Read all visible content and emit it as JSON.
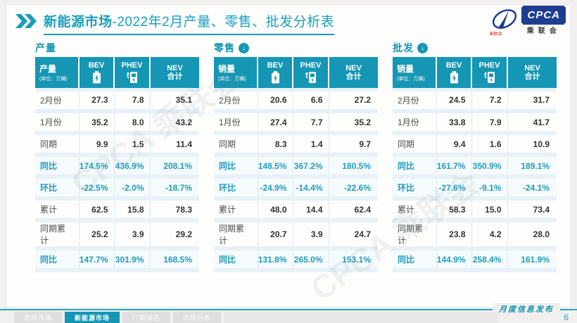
{
  "header": {
    "title_bold": "新能源市场",
    "title_rest": "-2022年2月产量、零售、批发分析表",
    "logo": {
      "name": "CPCA",
      "cn": "乘联会",
      "sub": "乘联会"
    }
  },
  "columns": {
    "bev": "BEV",
    "phev": "PHEV",
    "nev_line1": "NEV",
    "nev_line2": "合计"
  },
  "tables": [
    {
      "section_title": "产量",
      "header_label": "产量",
      "header_unit": "(单位：万辆)",
      "rows": [
        {
          "label": "2月份",
          "bev": "27.3",
          "phev": "7.8",
          "nev": "35.1",
          "highlight": false
        },
        {
          "label": "1月份",
          "bev": "35.2",
          "phev": "8.0",
          "nev": "43.2",
          "highlight": false
        },
        {
          "label": "同期",
          "bev": "9.9",
          "phev": "1.5",
          "nev": "11.4",
          "highlight": false
        },
        {
          "label": "同比",
          "bev": "174.5%",
          "phev": "436.9%",
          "nev": "208.1%",
          "highlight": true
        },
        {
          "label": "环比",
          "bev": "-22.5%",
          "phev": "-2.0%",
          "nev": "-18.7%",
          "highlight": true
        },
        {
          "label": "累计",
          "bev": "62.5",
          "phev": "15.8",
          "nev": "78.3",
          "highlight": false
        },
        {
          "label": "同期累计",
          "bev": "25.2",
          "phev": "3.9",
          "nev": "29.2",
          "highlight": false
        },
        {
          "label": "同比",
          "bev": "147.7%",
          "phev": "301.9%",
          "nev": "168.5%",
          "highlight": true
        }
      ]
    },
    {
      "section_title": "零售",
      "header_label": "销量",
      "header_unit": "(单位：万辆)",
      "rows": [
        {
          "label": "2月份",
          "bev": "20.6",
          "phev": "6.6",
          "nev": "27.2",
          "highlight": false
        },
        {
          "label": "1月份",
          "bev": "27.4",
          "phev": "7.7",
          "nev": "35.2",
          "highlight": false
        },
        {
          "label": "同期",
          "bev": "8.3",
          "phev": "1.4",
          "nev": "9.7",
          "highlight": false
        },
        {
          "label": "同比",
          "bev": "148.5%",
          "phev": "367.2%",
          "nev": "180.5%",
          "highlight": true
        },
        {
          "label": "环比",
          "bev": "-24.9%",
          "phev": "-14.4%",
          "nev": "-22.6%",
          "highlight": true
        },
        {
          "label": "累计",
          "bev": "48.0",
          "phev": "14.4",
          "nev": "62.4",
          "highlight": false
        },
        {
          "label": "同期累计",
          "bev": "20.7",
          "phev": "3.9",
          "nev": "24.7",
          "highlight": false
        },
        {
          "label": "同比",
          "bev": "131.8%",
          "phev": "265.0%",
          "nev": "153.1%",
          "highlight": true
        }
      ]
    },
    {
      "section_title": "批发",
      "header_label": "销量",
      "header_unit": "(单位：万辆)",
      "rows": [
        {
          "label": "2月份",
          "bev": "24.5",
          "phev": "7.2",
          "nev": "31.7",
          "highlight": false
        },
        {
          "label": "1月份",
          "bev": "33.8",
          "phev": "7.9",
          "nev": "41.7",
          "highlight": false
        },
        {
          "label": "同期",
          "bev": "9.4",
          "phev": "1.6",
          "nev": "10.9",
          "highlight": false
        },
        {
          "label": "同比",
          "bev": "161.7%",
          "phev": "350.9%",
          "nev": "189.1%",
          "highlight": true
        },
        {
          "label": "环比",
          "bev": "-27.6%",
          "phev": "-9.1%",
          "nev": "-24.1%",
          "highlight": true
        },
        {
          "label": "累计",
          "bev": "58.3",
          "phev": "15.0",
          "nev": "73.4",
          "highlight": false
        },
        {
          "label": "同期累计",
          "bev": "23.8",
          "phev": "4.2",
          "nev": "28.0",
          "highlight": false
        },
        {
          "label": "同比",
          "bev": "144.9%",
          "phev": "258.4%",
          "nev": "161.9%",
          "highlight": true
        }
      ]
    }
  ],
  "footer": {
    "tabs": [
      {
        "label": "总体市场",
        "active": false
      },
      {
        "label": "新能源市场",
        "active": true
      },
      {
        "label": "厂商排名",
        "active": false
      },
      {
        "label": "市场分析",
        "active": false
      }
    ],
    "publish": "月度信息发布",
    "page": "6"
  },
  "watermark": "CPCA 乘联会",
  "colors": {
    "accent": "#1596b4",
    "logo_blue": "#1d3e8f",
    "highlight_text": "#1f9cbc"
  }
}
